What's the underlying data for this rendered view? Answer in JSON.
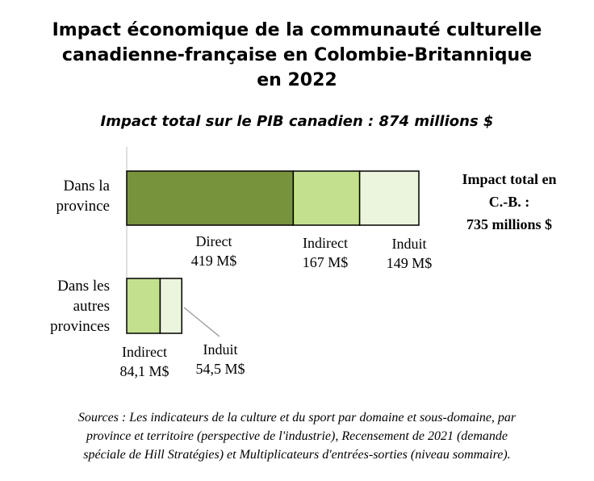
{
  "title_lines": [
    "Impact économique de la communauté culturelle",
    "canadienne-française en Colombie-Britannique",
    "en 2022"
  ],
  "subtitle": "Impact total sur le PIB canadien : 874 millions $",
  "chart_data": {
    "type": "bar",
    "orientation": "horizontal",
    "stacked": true,
    "categories": [
      {
        "lines": [
          "Dans la",
          "province"
        ]
      },
      {
        "lines": [
          "Dans les",
          "autres",
          "provinces"
        ]
      }
    ],
    "series": [
      {
        "name": "Direct",
        "values": [
          419,
          0
        ],
        "color": "#77933c"
      },
      {
        "name": "Indirect",
        "values": [
          167,
          84.1
        ],
        "color": "#c3e08f"
      },
      {
        "name": "Induit",
        "values": [
          149,
          54.5
        ],
        "color": "#ebf4dc"
      }
    ],
    "unit": "M$",
    "data_labels": [
      [
        {
          "name": "Direct",
          "value": "419 M$"
        },
        {
          "name": "Indirect",
          "value": "167 M$"
        },
        {
          "name": "Induit",
          "value": "149 M$"
        }
      ],
      [
        {
          "name": "Indirect",
          "value": "84,1 M$"
        },
        {
          "name": "Induit",
          "value": "54,5 M$"
        }
      ]
    ],
    "xlim": [
      0,
      735
    ],
    "grid": false,
    "legend": "none",
    "annotation_lines": [
      "Impact total en",
      "C.-B. :",
      "735 millions $"
    ]
  },
  "sources_lines": [
    "Sources : Les indicateurs de la culture et du sport par domaine et sous-domaine, par",
    "province et territoire (perspective de l'industrie), Recensement de 2021 (demande",
    "spéciale de Hill Stratégies) et Multiplicateurs d'entrées-sorties (niveau sommaire)."
  ]
}
